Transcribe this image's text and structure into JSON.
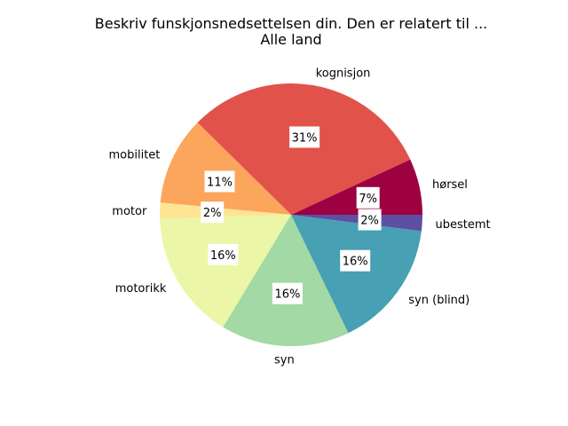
{
  "chart_data": {
    "type": "pie",
    "title": "Beskriv funskjonsnedsettelsen din. Den er relatert til ...",
    "subtitle": "Alle land",
    "slices": [
      {
        "label": "hørsel",
        "value": 7,
        "pct_label": "7%",
        "color": "#9e0142"
      },
      {
        "label": "kognisjon",
        "value": 31,
        "pct_label": "31%",
        "color": "#e1534a"
      },
      {
        "label": "mobilitet",
        "value": 11,
        "pct_label": "11%",
        "color": "#fca55d"
      },
      {
        "label": "motor",
        "value": 2,
        "pct_label": "2%",
        "color": "#fee593"
      },
      {
        "label": "motorikk",
        "value": 16,
        "pct_label": "16%",
        "color": "#ebf7a6"
      },
      {
        "label": "syn",
        "value": 16,
        "pct_label": "16%",
        "color": "#a2d9a4"
      },
      {
        "label": "syn (blind)",
        "value": 16,
        "pct_label": "16%",
        "color": "#47a0b3"
      },
      {
        "label": "ubestemt",
        "value": 2,
        "pct_label": "2%",
        "color": "#5e4fa2"
      }
    ],
    "start_angle": 0,
    "direction": "counterclockwise"
  }
}
